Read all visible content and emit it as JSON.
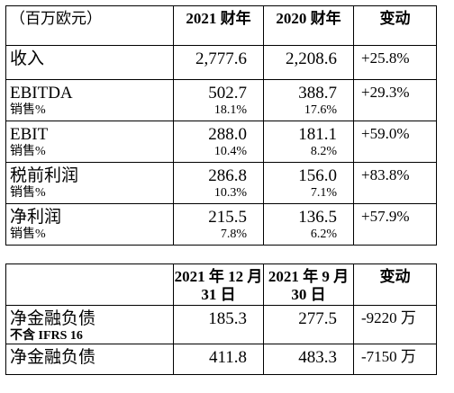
{
  "table1": {
    "header": {
      "unit": "（百万欧元）",
      "col1": "2021 财年",
      "col2": "2020 财年",
      "col3": "变动"
    },
    "rows": [
      {
        "label": "收入",
        "sublabel": "",
        "v2021": "2,777.6",
        "v2021_sub": "",
        "v2020": "2,208.6",
        "v2020_sub": "",
        "change": "+25.8%"
      },
      {
        "label": "EBITDA",
        "sublabel": "销售%",
        "v2021": "502.7",
        "v2021_sub": "18.1%",
        "v2020": "388.7",
        "v2020_sub": "17.6%",
        "change": "+29.3%"
      },
      {
        "label": "EBIT",
        "sublabel": "销售%",
        "v2021": "288.0",
        "v2021_sub": "10.4%",
        "v2020": "181.1",
        "v2020_sub": "8.2%",
        "change": "+59.0%"
      },
      {
        "label": "税前利润",
        "sublabel": "销售%",
        "v2021": "286.8",
        "v2021_sub": "10.3%",
        "v2020": "156.0",
        "v2020_sub": "7.1%",
        "change": "+83.8%"
      },
      {
        "label": "净利润",
        "sublabel": "销售%",
        "v2021": "215.5",
        "v2021_sub": "7.8%",
        "v2020": "136.5",
        "v2020_sub": "6.2%",
        "change": "+57.9%"
      }
    ]
  },
  "table2": {
    "header": {
      "col1": "2021 年 12 月 31 日",
      "col2": "2021 年 9 月 30 日",
      "col3": "变动"
    },
    "rows": [
      {
        "label": "净金融负债",
        "sublabel": "不含 IFRS 16",
        "v1": "185.3",
        "v2": "277.5",
        "change": "-9220 万"
      },
      {
        "label": "净金融负债",
        "sublabel": "",
        "v1": "411.8",
        "v2": "483.3",
        "change": "-7150 万"
      }
    ]
  }
}
